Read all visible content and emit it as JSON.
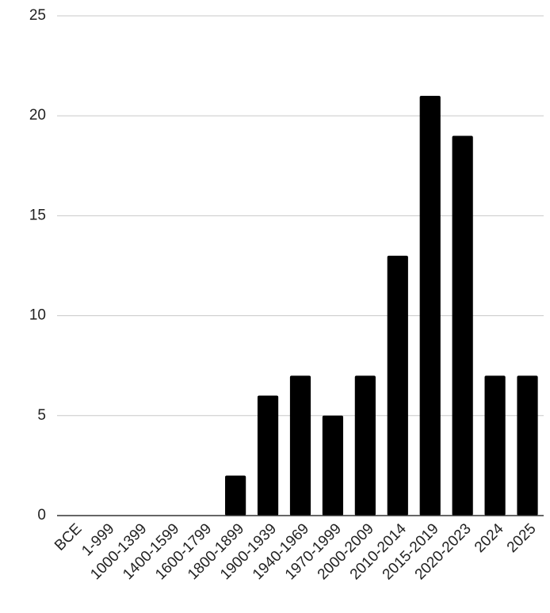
{
  "chart_data": {
    "type": "bar",
    "categories": [
      "BCE",
      "1-999",
      "1000-1399",
      "1400-1599",
      "1600-1799",
      "1800-1899",
      "1900-1939",
      "1940-1969",
      "1970-1999",
      "2000-2009",
      "2010-2014",
      "2015-2019",
      "2020-2023",
      "2024",
      "2025"
    ],
    "values": [
      0,
      0,
      0,
      0,
      0,
      2,
      6,
      7,
      5,
      7,
      13,
      21,
      19,
      7,
      7
    ],
    "color": "#000000",
    "ylim": [
      0,
      25
    ],
    "yticks": [
      0,
      5,
      10,
      15,
      20,
      25
    ],
    "grid": true
  }
}
